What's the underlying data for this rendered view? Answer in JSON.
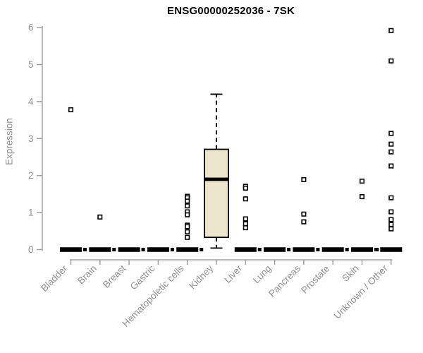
{
  "colors": {
    "background": "#ffffff",
    "title": "#000000",
    "axis_line": "#a0a0a0",
    "tick_label": "#8f8f8f",
    "box_fill": "#ece7cc",
    "box_stroke": "#000000",
    "median": "#000000",
    "zero_bar": "#000000",
    "outlier_fill": "#ffffff",
    "outlier_stroke": "#000000"
  },
  "chart_data": {
    "type": "boxplot",
    "title": "ENSG00000252036 - 7SK",
    "xlabel": "",
    "ylabel": "Expression",
    "ylim": [
      0,
      6
    ],
    "yticks": [
      0,
      1,
      2,
      3,
      4,
      5,
      6
    ],
    "grid": false,
    "legend": null,
    "categories": [
      "Bladder",
      "Brain",
      "Breast",
      "Gastric",
      "Hematopoietic cells",
      "Kidney",
      "Liver",
      "Lung",
      "Pancreas",
      "Prostate",
      "Skin",
      "Unknown / Other"
    ],
    "series": [
      {
        "name": "Bladder",
        "collapsed": true,
        "whisker_low": 0,
        "q1": 0,
        "median": 0,
        "q3": 0,
        "whisker_high": 0,
        "nub": "right",
        "outliers": [
          3.78
        ]
      },
      {
        "name": "Brain",
        "collapsed": true,
        "whisker_low": 0,
        "q1": 0,
        "median": 0,
        "q3": 0,
        "whisker_high": 0,
        "nub": "right",
        "outliers": [
          0.88
        ]
      },
      {
        "name": "Breast",
        "collapsed": true,
        "whisker_low": 0,
        "q1": 0,
        "median": 0,
        "q3": 0,
        "whisker_high": 0,
        "nub": "right",
        "outliers": []
      },
      {
        "name": "Gastric",
        "collapsed": true,
        "whisker_low": 0,
        "q1": 0,
        "median": 0,
        "q3": 0,
        "whisker_high": 0,
        "nub": "right",
        "outliers": []
      },
      {
        "name": "Hematopoietic cells",
        "collapsed": true,
        "whisker_low": 0,
        "q1": 0,
        "median": 0,
        "q3": 0,
        "whisker_high": 0,
        "nub": "right",
        "outliers": [
          1.44,
          1.4,
          1.31,
          1.18,
          1.02,
          0.94,
          0.66,
          0.62,
          0.48,
          0.33
        ]
      },
      {
        "name": "Kidney",
        "collapsed": false,
        "whisker_low": 0.04,
        "q1": 0.33,
        "median": 1.9,
        "q3": 2.71,
        "whisker_high": 4.2,
        "nub": null,
        "outliers": []
      },
      {
        "name": "Liver",
        "collapsed": true,
        "whisker_low": 0,
        "q1": 0,
        "median": 0,
        "q3": 0,
        "whisker_high": 0,
        "nub": "right",
        "outliers": [
          1.71,
          1.66,
          1.37,
          0.83,
          0.7,
          0.59
        ]
      },
      {
        "name": "Lung",
        "collapsed": true,
        "whisker_low": 0,
        "q1": 0,
        "median": 0,
        "q3": 0,
        "whisker_high": 0,
        "nub": "right",
        "outliers": []
      },
      {
        "name": "Pancreas",
        "collapsed": true,
        "whisker_low": 0,
        "q1": 0,
        "median": 0,
        "q3": 0,
        "whisker_high": 0,
        "nub": "right",
        "outliers": [
          1.89,
          0.96,
          0.75
        ]
      },
      {
        "name": "Prostate",
        "collapsed": true,
        "whisker_low": 0,
        "q1": 0,
        "median": 0,
        "q3": 0,
        "whisker_high": 0,
        "nub": "right",
        "outliers": []
      },
      {
        "name": "Skin",
        "collapsed": true,
        "whisker_low": 0,
        "q1": 0,
        "median": 0,
        "q3": 0,
        "whisker_high": 0,
        "nub": "right",
        "outliers": [
          1.85,
          1.43
        ]
      },
      {
        "name": "Unknown / Other",
        "collapsed": true,
        "whisker_low": 0,
        "q1": 0,
        "median": 0,
        "q3": 0,
        "whisker_high": 0,
        "nub": "left",
        "outliers": [
          5.92,
          5.1,
          3.14,
          2.85,
          2.64,
          2.26,
          1.4,
          1.02,
          0.81,
          0.68,
          0.56
        ]
      }
    ]
  }
}
